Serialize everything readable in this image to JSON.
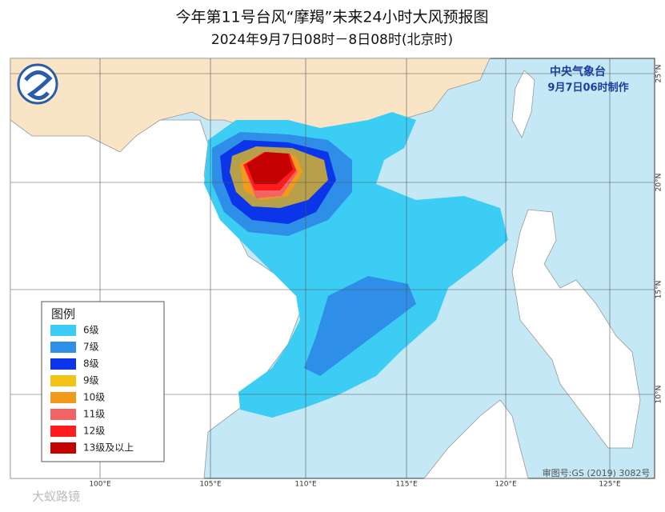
{
  "header": {
    "title": "今年第11号台风“摩羯”未来24小时大风预报图",
    "subtitle": "2024年9月7日08时－8日08时(北京时)"
  },
  "agency": {
    "name": "中央气象台",
    "made": "9月7日06时制作"
  },
  "legend": {
    "title": "图例",
    "items": [
      {
        "label": "6级",
        "color": "#3ccdf5"
      },
      {
        "label": "7级",
        "color": "#2e8ee8"
      },
      {
        "label": "8级",
        "color": "#0b35e8"
      },
      {
        "label": "9级",
        "color": "#f2c414"
      },
      {
        "label": "10级",
        "color": "#f29a1c"
      },
      {
        "label": "11级",
        "color": "#f26464"
      },
      {
        "label": "12级",
        "color": "#ff1c1c"
      },
      {
        "label": "13级及以上",
        "color": "#c40000"
      }
    ]
  },
  "lat_labels": [
    "25°N",
    "20°N",
    "15°N",
    "10°N"
  ],
  "lon_labels": [
    "100°E",
    "105°E",
    "110°E",
    "115°E",
    "120°E",
    "125°E"
  ],
  "map_ref": "审图号:GS (2019) 3082号",
  "watermark": "大蚁路镜"
}
